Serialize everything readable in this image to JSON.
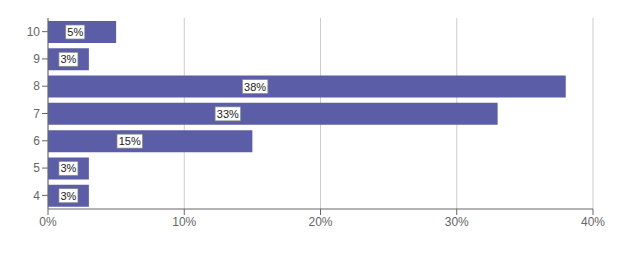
{
  "chart_data": {
    "type": "bar",
    "orientation": "horizontal",
    "categories": [
      "4",
      "5",
      "6",
      "7",
      "8",
      "9",
      "10"
    ],
    "values": [
      3,
      3,
      15,
      33,
      38,
      3,
      5
    ],
    "value_labels": [
      "3%",
      "3%",
      "15%",
      "33%",
      "38%",
      "3%",
      "5%"
    ],
    "data_labels": true,
    "color": "#5b5ea6",
    "xlim": [
      0,
      40
    ],
    "xticks": [
      {
        "value": 0,
        "label": "0%"
      },
      {
        "value": 10,
        "label": "10%"
      },
      {
        "value": 20,
        "label": "20%"
      },
      {
        "value": 30,
        "label": "30%"
      },
      {
        "value": 40,
        "label": "40%"
      }
    ],
    "grid": true
  }
}
